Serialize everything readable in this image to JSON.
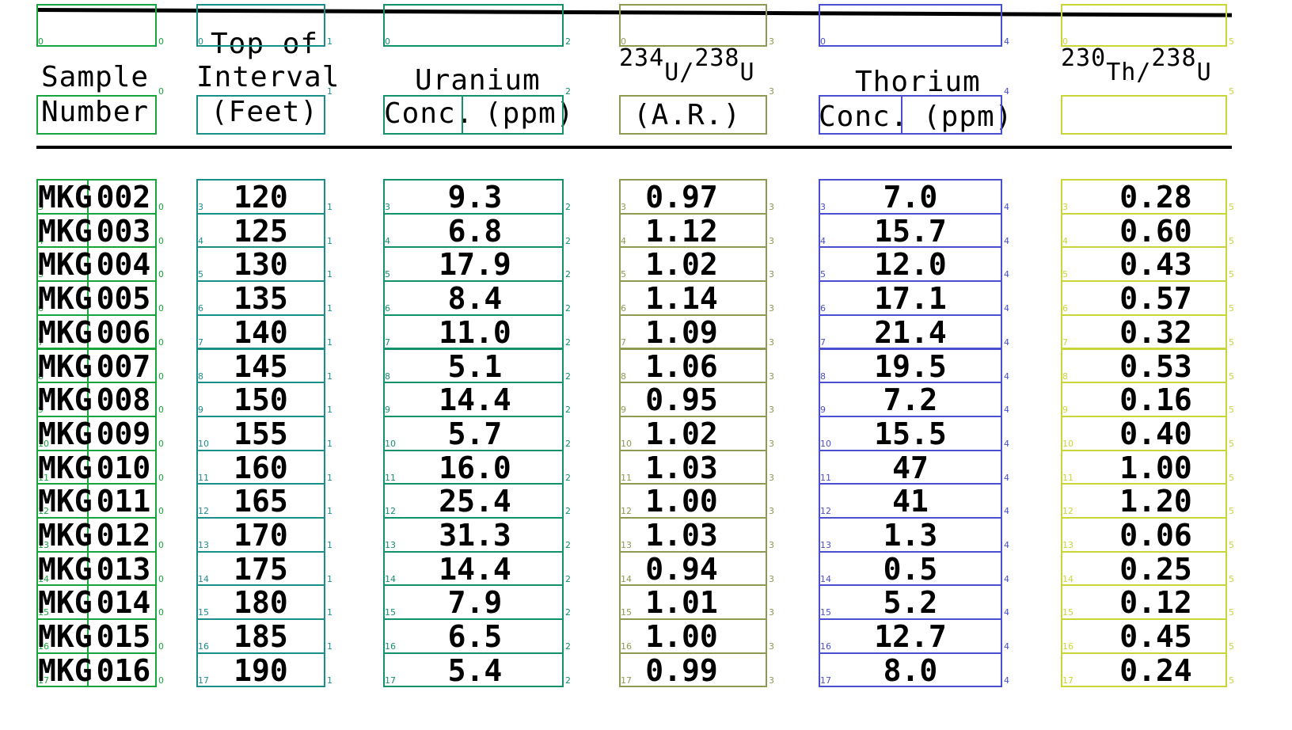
{
  "headers": {
    "sample_line1": "Sample",
    "sample_line2": "Number",
    "top_line1": "Top of",
    "top_line2": "Interval",
    "top_line3": "(Feet)",
    "uranium_line1": "Uranium",
    "uranium_conc": "Conc.",
    "uranium_unit": "(ppm)",
    "ratio_u_a": "234",
    "ratio_u_b": "U/",
    "ratio_u_c": "238",
    "ratio_u_d": "U",
    "ratio_u_unit": "(A.R.)",
    "thorium_line1": "Thorium",
    "thorium_conc": "Conc.",
    "thorium_unit": "(ppm)",
    "ratio_th_a": "230",
    "ratio_th_b": "Th/",
    "ratio_th_c": "238",
    "ratio_th_d": "U"
  },
  "table": {
    "rows": [
      {
        "prefix": "MKG",
        "id": "002",
        "top": "120",
        "u": "9.3",
        "ua": "0.97",
        "th": "7.0",
        "tha": "0.28"
      },
      {
        "prefix": "MKG",
        "id": "003",
        "top": "125",
        "u": "6.8",
        "ua": "1.12",
        "th": "15.7",
        "tha": "0.60"
      },
      {
        "prefix": "MKG",
        "id": "004",
        "top": "130",
        "u": "17.9",
        "ua": "1.02",
        "th": "12.0",
        "tha": "0.43"
      },
      {
        "prefix": "MKG",
        "id": "005",
        "top": "135",
        "u": "8.4",
        "ua": "1.14",
        "th": "17.1",
        "tha": "0.57"
      },
      {
        "prefix": "MKG",
        "id": "006",
        "top": "140",
        "u": "11.0",
        "ua": "1.09",
        "th": "21.4",
        "tha": "0.32"
      },
      {
        "prefix": "MKG",
        "id": "007",
        "top": "145",
        "u": "5.1",
        "ua": "1.06",
        "th": "19.5",
        "tha": "0.53"
      },
      {
        "prefix": "MKG",
        "id": "008",
        "top": "150",
        "u": "14.4",
        "ua": "0.95",
        "th": "7.2",
        "tha": "0.16"
      },
      {
        "prefix": "MKG",
        "id": "009",
        "top": "155",
        "u": "5.7",
        "ua": "1.02",
        "th": "15.5",
        "tha": "0.40"
      },
      {
        "prefix": "MKG",
        "id": "010",
        "top": "160",
        "u": "16.0",
        "ua": "1.03",
        "th": "47",
        "tha": "1.00"
      },
      {
        "prefix": "MKG",
        "id": "011",
        "top": "165",
        "u": "25.4",
        "ua": "1.00",
        "th": "41",
        "tha": "1.20"
      },
      {
        "prefix": "MKG",
        "id": "012",
        "top": "170",
        "u": "31.3",
        "ua": "1.03",
        "th": "1.3",
        "tha": "0.06"
      },
      {
        "prefix": "MKG",
        "id": "013",
        "top": "175",
        "u": "14.4",
        "ua": "0.94",
        "th": "0.5",
        "tha": "0.25"
      },
      {
        "prefix": "MKG",
        "id": "014",
        "top": "180",
        "u": "7.9",
        "ua": "1.01",
        "th": "5.2",
        "tha": "0.12"
      },
      {
        "prefix": "MKG",
        "id": "015",
        "top": "185",
        "u": "6.5",
        "ua": "1.00",
        "th": "12.7",
        "tha": "0.45"
      },
      {
        "prefix": "MKG",
        "id": "016",
        "top": "190",
        "u": "5.4",
        "ua": "0.99",
        "th": "8.0",
        "tha": "0.24"
      }
    ]
  },
  "colors": {
    "col0": "#18a43c",
    "col1": "#1a8f8a",
    "col2": "#12916a",
    "col3": "#8c9a52",
    "col4": "#4a4fcf",
    "col5": "#c8d63a"
  }
}
